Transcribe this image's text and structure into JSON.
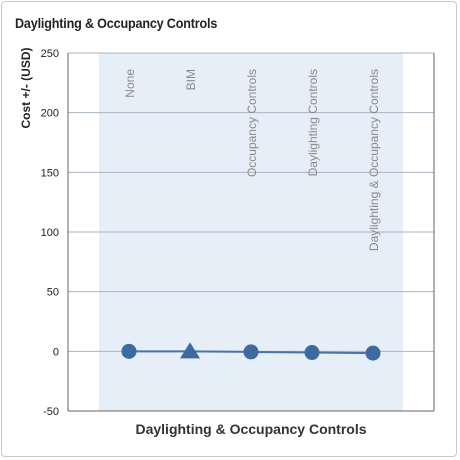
{
  "panel": {
    "title": "Daylighting & Occupancy Controls"
  },
  "chart_data": {
    "type": "line",
    "categories": [
      "None",
      "BIM",
      "Occupancy Controls",
      "Daylighting Controls",
      "Daylighting & Occupancy Controls"
    ],
    "series": [
      {
        "values": [
          0,
          0,
          -0.5,
          -1,
          -1.5
        ],
        "markers": [
          "circle",
          "triangle",
          "circle",
          "circle",
          "circle"
        ]
      }
    ],
    "title": "",
    "xlabel": "Daylighting & Occupancy Controls",
    "ylabel": "Cost +/- (USD)",
    "ylim": [
      -50,
      250
    ],
    "yticks": [
      -50,
      0,
      50,
      100,
      150,
      200,
      250
    ],
    "grid": true,
    "colors": {
      "line": "#4a74a6",
      "marker": "#3f6aa0",
      "band": "#e6eef8",
      "grid": "#a9b4c0"
    }
  }
}
